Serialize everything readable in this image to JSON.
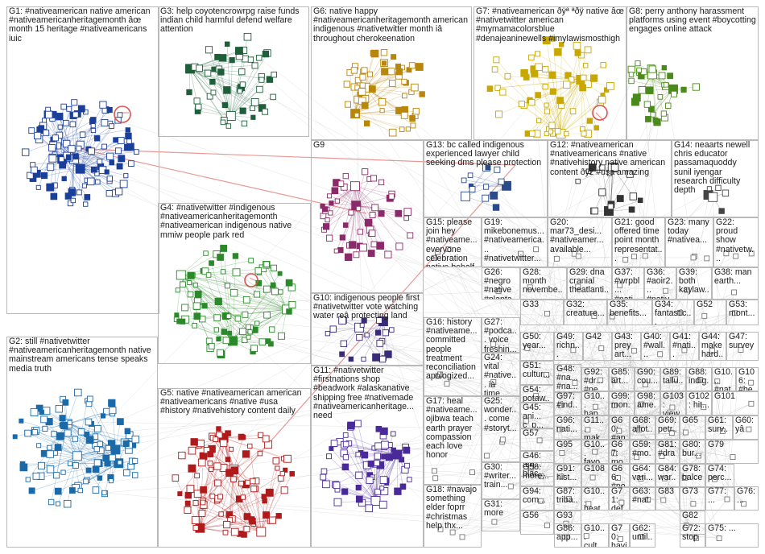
{
  "groups": [
    {
      "id": "G1",
      "text": "G1: #nativeamerican native american #nativeamericanheritagemonth âœ month 15 heritage #nativeamericans iuic",
      "color": "#1a3f9a"
    },
    {
      "id": "G3",
      "text": "G3: help coyotencrowrpg raise funds indian child harmful defend welfare attention",
      "color": "#1e5f3a"
    },
    {
      "id": "G6",
      "text": "G6: native happy #nativeamericanheritagemonth american indigenous #nativetwitter month iâ throughout cherokeenation",
      "color": "#b8860b"
    },
    {
      "id": "G7",
      "text": "G7: #nativeamerican ðÿª ªðÿ native âœ #nativetwitter american #mymamacolorsblue #denajeaninewells #imylawismosthigh",
      "color": "#c8a800"
    },
    {
      "id": "G8",
      "text": "G8: perry anthony harassment platforms using event #boycotting engages online attack",
      "color": "#4a8a1a"
    },
    {
      "id": "G9",
      "text": "G9",
      "color": "#8a2a6a"
    },
    {
      "id": "G13",
      "text": "G13: bc called indigenous experienced lawyer child seeking dms please protection",
      "color": "#2a4a8a"
    },
    {
      "id": "G12",
      "text": "G12: #nativeamerican #nativeamericans #native #nativehistory native american content ðÿž #usa amazing",
      "color": "#333333"
    },
    {
      "id": "G14",
      "text": "G14: neaarts newell chris educator passamaquoddy sunil iyengar research difficulty depth",
      "color": "#444444"
    },
    {
      "id": "G4",
      "text": "G4: #nativetwitter #indigenous #nativeamericanheritagemonth #nativeamerican indigenous native mmiw people park red",
      "color": "#2a8a2a"
    },
    {
      "id": "G15",
      "text": "G15: please join hey #nativeame... everyone celebration native behalf american studiesâ",
      "color": "#555555"
    },
    {
      "id": "G19",
      "text": "G19: mikebonemus... #nativeamerica... #nativetwitter...",
      "color": "#555555"
    },
    {
      "id": "G20",
      "text": "G20: mar73_desi... #nativeamer... available...",
      "color": "#555555"
    },
    {
      "id": "G21",
      "text": "G21: good offered time point month representat...",
      "color": "#555555"
    },
    {
      "id": "G23",
      "text": "G23: many today #nativea...",
      "color": "#555555"
    },
    {
      "id": "G22",
      "text": "G22: proud show #nativetw...",
      "color": "#555555"
    },
    {
      "id": "G26",
      "text": "G26: #negro #native #planta...",
      "color": "#555555"
    },
    {
      "id": "G28",
      "text": "G28: month novembe...",
      "color": "#555555"
    },
    {
      "id": "G29",
      "text": "G29: dna cranial theatlanti...",
      "color": "#555555"
    },
    {
      "id": "G37",
      "text": "G37: #wrpbl... #nati...",
      "color": "#555555"
    },
    {
      "id": "G36",
      "text": "G36: #aoir2... #native...",
      "color": "#555555"
    },
    {
      "id": "G39",
      "text": "G39: both kaylaw...",
      "color": "#555555"
    },
    {
      "id": "G38",
      "text": "G38: man earth...",
      "color": "#555555"
    },
    {
      "id": "G2",
      "text": "G2: still #nativetwitter #nativeamericanheritagemonth native mainstream americans tense speaks media truth",
      "color": "#1a6aaa"
    },
    {
      "id": "G10",
      "text": "G10: indigenous people first #nativetwitter vote watching water reâ protecting land",
      "color": "#3a2a7a"
    },
    {
      "id": "G16",
      "text": "G16: history #nativeame... committed people treatment reconciliation apologized...",
      "color": "#555555"
    },
    {
      "id": "G27",
      "text": "G27: #podca... voice freshin...",
      "color": "#555555"
    },
    {
      "id": "G33",
      "text": "G33",
      "color": "#555555"
    },
    {
      "id": "G32",
      "text": "G32: creature...",
      "color": "#555555"
    },
    {
      "id": "G35",
      "text": "G35: benefits...",
      "color": "#555555"
    },
    {
      "id": "G34",
      "text": "G34: fantastic...",
      "color": "#555555"
    },
    {
      "id": "G52",
      "text": "G52",
      "color": "#555555"
    },
    {
      "id": "G53",
      "text": "G53: mont...",
      "color": "#555555"
    },
    {
      "id": "G50",
      "text": "G50: year...",
      "color": "#555555"
    },
    {
      "id": "G49",
      "text": "G49: richn... join...",
      "color": "#555555"
    },
    {
      "id": "G42",
      "text": "G42",
      "color": "#555555"
    },
    {
      "id": "G43",
      "text": "G43: prey art...",
      "color": "#555555"
    },
    {
      "id": "G40",
      "text": "G40: #wall... #app...",
      "color": "#555555"
    },
    {
      "id": "G41",
      "text": "G41: #nati... #nati...",
      "color": "#555555"
    },
    {
      "id": "G44",
      "text": "G44: make hard...",
      "color": "#555555"
    },
    {
      "id": "G47",
      "text": "G47: survey",
      "color": "#555555"
    },
    {
      "id": "G24",
      "text": "G24: vital #native... ià time...",
      "color": "#555555"
    },
    {
      "id": "G5",
      "text": "G5: native #nativeamerican american #nativeamericans #native #usa #history #nativehistory content daily",
      "color": "#b01a1a"
    },
    {
      "id": "G51",
      "text": "G51: cultur...",
      "color": "#555555"
    },
    {
      "id": "G48",
      "text": "G48: #na... #na...",
      "color": "#555555"
    },
    {
      "id": "G92",
      "text": "G92: #dr... #ne...",
      "color": "#555555"
    },
    {
      "id": "G85",
      "text": "G85: art...",
      "color": "#555555"
    },
    {
      "id": "G90",
      "text": "G90: cou...",
      "color": "#555555"
    },
    {
      "id": "G89",
      "text": "G89: tallu...",
      "color": "#555555"
    },
    {
      "id": "G88",
      "text": "G88: indig...",
      "color": "#555555"
    },
    {
      "id": "G10x",
      "text": "G10... #nat...",
      "color": "#555555"
    },
    {
      "id": "G106",
      "text": "G106: #be...",
      "color": "#555555"
    },
    {
      "id": "G54",
      "text": "G54: potaw...",
      "color": "#555555"
    },
    {
      "id": "G97",
      "text": "G97: #ind...",
      "color": "#555555"
    },
    {
      "id": "G10a",
      "text": "G10... hap...",
      "color": "#555555"
    },
    {
      "id": "G99",
      "text": "G99: mon...",
      "color": "#555555"
    },
    {
      "id": "G98",
      "text": "G98: ame...",
      "color": "#555555"
    },
    {
      "id": "G103",
      "text": "G103: view...",
      "color": "#555555"
    },
    {
      "id": "G102",
      "text": "G102: hit...",
      "color": "#555555"
    },
    {
      "id": "G101",
      "text": "G101",
      "color": "#555555"
    },
    {
      "id": "G17",
      "text": "G17: heal #nativeame... ojibwa teach earth prayer compassion each love honor",
      "color": "#555555"
    },
    {
      "id": "G45",
      "text": "G45: ani... c_p...",
      "color": "#555555"
    },
    {
      "id": "G96",
      "text": "G96: nati...",
      "color": "#555555"
    },
    {
      "id": "G11x",
      "text": "G11... mak...",
      "color": "#555555"
    },
    {
      "id": "G60",
      "text": "G60: #an...",
      "color": "#555555"
    },
    {
      "id": "G68",
      "text": "G68: allot...",
      "color": "#555555"
    },
    {
      "id": "G69",
      "text": "G69: petr...",
      "color": "#555555"
    },
    {
      "id": "G65",
      "text": "G65",
      "color": "#555555"
    },
    {
      "id": "G61",
      "text": "G61: surv...",
      "color": "#555555"
    },
    {
      "id": "G60b",
      "text": "G60: yâ",
      "color": "#555555"
    },
    {
      "id": "G25",
      "text": "G25: wonder... come #storyt...",
      "color": "#555555"
    },
    {
      "id": "G57",
      "text": "G57",
      "color": "#555555"
    },
    {
      "id": "G95",
      "text": "G95",
      "color": "#555555"
    },
    {
      "id": "G10b",
      "text": "G10... favo...",
      "color": "#555555"
    },
    {
      "id": "G67",
      "text": "G67: mon...",
      "color": "#555555"
    },
    {
      "id": "G59",
      "text": "G59: #mo...",
      "color": "#555555"
    },
    {
      "id": "G81",
      "text": "G81: #dra...",
      "color": "#555555"
    },
    {
      "id": "G80",
      "text": "G80: bur...",
      "color": "#555555"
    },
    {
      "id": "G79",
      "text": "G79",
      "color": "#555555"
    },
    {
      "id": "G11",
      "text": "G11: #nativetwitter #firstnations shop #beadwork #alaskanative shipping free #nativemade #nativeamericanheritage... need",
      "color": "#4a2a9a"
    },
    {
      "id": "G46",
      "text": "G46: am... blac...",
      "color": "#555555"
    },
    {
      "id": "G91",
      "text": "G91: hist...",
      "color": "#555555"
    },
    {
      "id": "G108",
      "text": "G108",
      "color": "#555555"
    },
    {
      "id": "G66",
      "text": "G66: #po...",
      "color": "#555555"
    },
    {
      "id": "G64",
      "text": "G64: vari...",
      "color": "#555555"
    },
    {
      "id": "G84",
      "text": "G84: war...",
      "color": "#555555"
    },
    {
      "id": "G78",
      "text": "G78: balce...",
      "color": "#555555"
    },
    {
      "id": "G74",
      "text": "G74: perc...",
      "color": "#555555"
    },
    {
      "id": "G58",
      "text": "G58: more...",
      "color": "#555555"
    },
    {
      "id": "G30",
      "text": "G30: #writer... train...",
      "color": "#555555"
    },
    {
      "id": "G94",
      "text": "G94: com...",
      "color": "#555555"
    },
    {
      "id": "G87",
      "text": "G87: triba...",
      "color": "#555555"
    },
    {
      "id": "G10c",
      "text": "G10... heat...",
      "color": "#555555"
    },
    {
      "id": "G71",
      "text": "G71: defa...",
      "color": "#555555"
    },
    {
      "id": "G63",
      "text": "G63: #nat...",
      "color": "#555555"
    },
    {
      "id": "G83",
      "text": "G83",
      "color": "#555555"
    },
    {
      "id": "G73",
      "text": "G73",
      "color": "#555555"
    },
    {
      "id": "G77",
      "text": "G77: ...",
      "color": "#555555"
    },
    {
      "id": "G76",
      "text": "G76: ...",
      "color": "#555555"
    },
    {
      "id": "G18",
      "text": "G18: #navajo something elder foprr #christmas help thx...",
      "color": "#555555"
    },
    {
      "id": "G31",
      "text": "G31: more",
      "color": "#555555"
    },
    {
      "id": "G56",
      "text": "G56",
      "color": "#555555"
    },
    {
      "id": "G93",
      "text": "G93",
      "color": "#555555"
    },
    {
      "id": "G86",
      "text": "G86: app...",
      "color": "#555555"
    },
    {
      "id": "G10d",
      "text": "G10... cult...",
      "color": "#555555"
    },
    {
      "id": "G70",
      "text": "G70: havi...",
      "color": "#555555"
    },
    {
      "id": "G62",
      "text": "G62: until...",
      "color": "#555555"
    },
    {
      "id": "G82",
      "text": "G82",
      "color": "#555555"
    },
    {
      "id": "G72",
      "text": "G72: stop",
      "color": "#555555"
    },
    {
      "id": "G75",
      "text": "G75: ...",
      "color": "#555555"
    }
  ],
  "edge_color": "#9a9a9a",
  "highlight_edge_color": "#d9534f"
}
